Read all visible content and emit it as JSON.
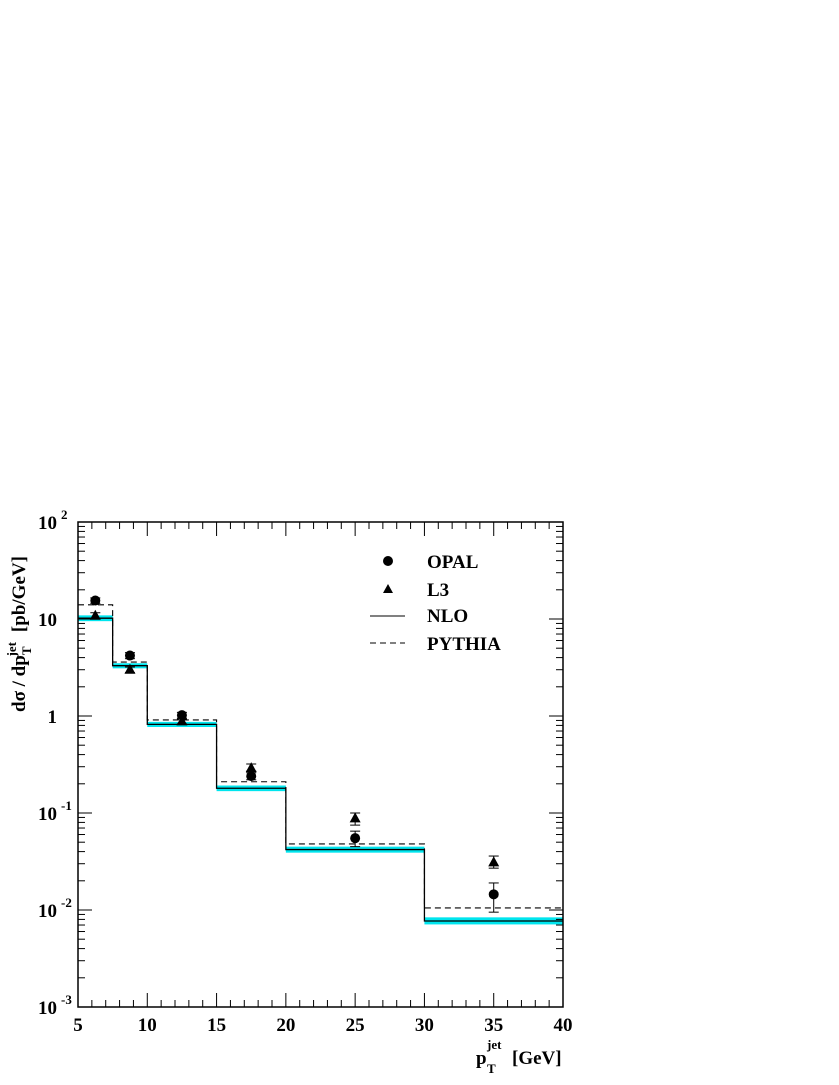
{
  "chart_data": {
    "type": "step",
    "xlabel": {
      "main": "p",
      "sub": "T",
      "sup": "jet",
      "unit": "[GeV]"
    },
    "ylabel": {
      "prefix": "dσ / dp",
      "sub": "T",
      "sup": "jet",
      "unit": "[pb/GeV]"
    },
    "xlim": [
      5,
      40
    ],
    "ylim_log10": [
      -3,
      2
    ],
    "log_y": true,
    "x_ticks": [
      "5",
      "10",
      "15",
      "20",
      "25",
      "30",
      "35",
      "40"
    ],
    "y_ticks": [
      {
        "base": "10",
        "exp": "2"
      },
      {
        "base": "10",
        "exp": ""
      },
      {
        "base": "1",
        "exp": ""
      },
      {
        "base": "10",
        "exp": "-1"
      },
      {
        "base": "10",
        "exp": "-2"
      },
      {
        "base": "10",
        "exp": "-3"
      }
    ],
    "bins": [
      [
        5,
        7.5
      ],
      [
        7.5,
        10
      ],
      [
        10,
        15
      ],
      [
        15,
        20
      ],
      [
        20,
        30
      ],
      [
        30,
        40
      ]
    ],
    "series": [
      {
        "name": "OPAL",
        "marker": "circle",
        "x": [
          6.25,
          8.75,
          12.5,
          17.5,
          25,
          35
        ],
        "y": [
          15.5,
          4.2,
          1.02,
          0.24,
          0.055,
          0.0145
        ],
        "yerr_low": [
          14.5,
          3.9,
          0.95,
          0.22,
          0.045,
          0.0095
        ],
        "yerr_high": [
          16.5,
          4.5,
          1.09,
          0.27,
          0.065,
          0.019
        ]
      },
      {
        "name": "L3",
        "marker": "triangle",
        "x": [
          6.25,
          8.75,
          12.5,
          17.5,
          25,
          35
        ],
        "y": [
          10.8,
          3.0,
          0.88,
          0.29,
          0.088,
          0.031
        ],
        "yerr_low": [
          10.0,
          2.8,
          0.83,
          0.26,
          0.075,
          0.027
        ],
        "yerr_high": [
          11.6,
          3.2,
          0.93,
          0.32,
          0.1,
          0.036
        ]
      },
      {
        "name": "NLO",
        "line": "solid",
        "color": "#000000",
        "y": [
          10.2,
          3.3,
          0.82,
          0.18,
          0.042,
          0.0077
        ],
        "band_low": [
          9.5,
          3.1,
          0.77,
          0.168,
          0.039,
          0.0071
        ],
        "band_high": [
          10.9,
          3.5,
          0.87,
          0.192,
          0.045,
          0.0084
        ],
        "band_color": "#00e5ee"
      },
      {
        "name": "PYTHIA",
        "line": "dashed",
        "color": "#000000",
        "y": [
          14.0,
          3.6,
          0.91,
          0.21,
          0.048,
          0.0105
        ]
      }
    ],
    "legend_position": "top-right"
  }
}
